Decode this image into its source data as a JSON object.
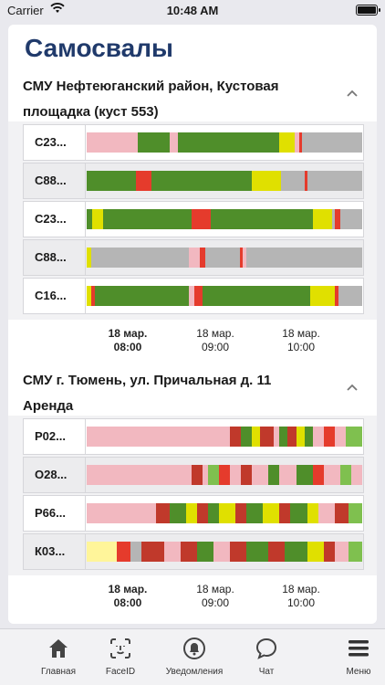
{
  "status": {
    "carrier": "Carrier",
    "time": "10:48 AM"
  },
  "page": {
    "title": "Самосвалы"
  },
  "groups": [
    {
      "title": "СМУ Нефтеюганский район, Кустовая площадка (куст 553)",
      "ticks": [
        {
          "date": "18 мар.",
          "time": "08:00",
          "bold": true
        },
        {
          "date": "18 мар.",
          "time": "09:00",
          "bold": false
        },
        {
          "date": "18 мар.",
          "time": "10:00",
          "bold": false
        }
      ],
      "rows": [
        {
          "label": "С23...",
          "segments": [
            [
              0,
              0.185,
              "#f2b8c0"
            ],
            [
              0.185,
              0.3,
              "#4f8e2a"
            ],
            [
              0.3,
              0.33,
              "#f2b8c0"
            ],
            [
              0.33,
              0.7,
              "#4f8e2a"
            ],
            [
              0.7,
              0.755,
              "#e0e000"
            ],
            [
              0.755,
              0.77,
              "#f2b8c0"
            ],
            [
              0.77,
              0.78,
              "#e53b2c"
            ],
            [
              0.78,
              1,
              "#b5b5b5"
            ]
          ]
        },
        {
          "label": "С88...",
          "segments": [
            [
              0,
              0.18,
              "#4f8e2a"
            ],
            [
              0.18,
              0.235,
              "#e53b2c"
            ],
            [
              0.235,
              0.6,
              "#4f8e2a"
            ],
            [
              0.6,
              0.705,
              "#e0e000"
            ],
            [
              0.705,
              0.79,
              "#b5b5b5"
            ],
            [
              0.79,
              0.8,
              "#e53b2c"
            ],
            [
              0.8,
              1,
              "#b5b5b5"
            ]
          ]
        },
        {
          "label": "С23...",
          "segments": [
            [
              0,
              0.02,
              "#4f8e2a"
            ],
            [
              0.02,
              0.06,
              "#e0e000"
            ],
            [
              0.06,
              0.38,
              "#4f8e2a"
            ],
            [
              0.38,
              0.45,
              "#e53b2c"
            ],
            [
              0.45,
              0.82,
              "#4f8e2a"
            ],
            [
              0.82,
              0.89,
              "#e0e000"
            ],
            [
              0.89,
              0.9,
              "#b5b5b5"
            ],
            [
              0.9,
              0.92,
              "#e53b2c"
            ],
            [
              0.92,
              1,
              "#b5b5b5"
            ]
          ]
        },
        {
          "label": "С88...",
          "segments": [
            [
              0,
              0.015,
              "#e0e000"
            ],
            [
              0.015,
              0.37,
              "#b5b5b5"
            ],
            [
              0.37,
              0.41,
              "#f2b8c0"
            ],
            [
              0.41,
              0.43,
              "#e53b2c"
            ],
            [
              0.43,
              0.555,
              "#b5b5b5"
            ],
            [
              0.555,
              0.565,
              "#e53b2c"
            ],
            [
              0.565,
              0.58,
              "#f2b8c0"
            ],
            [
              0.58,
              1,
              "#b5b5b5"
            ]
          ]
        },
        {
          "label": "С16...",
          "segments": [
            [
              0,
              0.015,
              "#e0e000"
            ],
            [
              0.015,
              0.03,
              "#e53b2c"
            ],
            [
              0.03,
              0.37,
              "#4f8e2a"
            ],
            [
              0.37,
              0.39,
              "#f2b8c0"
            ],
            [
              0.39,
              0.42,
              "#e53b2c"
            ],
            [
              0.42,
              0.81,
              "#4f8e2a"
            ],
            [
              0.81,
              0.9,
              "#e0e000"
            ],
            [
              0.9,
              0.915,
              "#e53b2c"
            ],
            [
              0.915,
              1,
              "#b5b5b5"
            ]
          ]
        }
      ]
    },
    {
      "title": "СМУ г. Тюмень, ул. Причальная д. 11 Аренда",
      "ticks": [
        {
          "date": "18 мар.",
          "time": "08:00",
          "bold": true
        },
        {
          "date": "18 мар.",
          "time": "09:00",
          "bold": false
        },
        {
          "date": "18 мар.",
          "time": "10:00",
          "bold": false
        }
      ],
      "rows": [
        {
          "label": "Р02...",
          "segments": [
            [
              0,
              0.52,
              "#f2b8c0"
            ],
            [
              0.52,
              0.56,
              "#c0392b"
            ],
            [
              0.56,
              0.6,
              "#4f8e2a"
            ],
            [
              0.6,
              0.63,
              "#e0e000"
            ],
            [
              0.63,
              0.68,
              "#c0392b"
            ],
            [
              0.68,
              0.7,
              "#f2b8c0"
            ],
            [
              0.7,
              0.73,
              "#4f8e2a"
            ],
            [
              0.73,
              0.76,
              "#c0392b"
            ],
            [
              0.76,
              0.79,
              "#e0e000"
            ],
            [
              0.79,
              0.82,
              "#4f8e2a"
            ],
            [
              0.82,
              0.86,
              "#f2b8c0"
            ],
            [
              0.86,
              0.9,
              "#e53b2c"
            ],
            [
              0.9,
              0.94,
              "#f2b8c0"
            ],
            [
              0.94,
              1,
              "#7fc04f"
            ]
          ]
        },
        {
          "label": "О28...",
          "segments": [
            [
              0,
              0.38,
              "#f2b8c0"
            ],
            [
              0.38,
              0.42,
              "#c0392b"
            ],
            [
              0.42,
              0.44,
              "#f2b8c0"
            ],
            [
              0.44,
              0.48,
              "#7fc04f"
            ],
            [
              0.48,
              0.52,
              "#e53b2c"
            ],
            [
              0.52,
              0.56,
              "#f2b8c0"
            ],
            [
              0.56,
              0.6,
              "#c0392b"
            ],
            [
              0.6,
              0.66,
              "#f2b8c0"
            ],
            [
              0.66,
              0.7,
              "#4f8e2a"
            ],
            [
              0.7,
              0.76,
              "#f2b8c0"
            ],
            [
              0.76,
              0.82,
              "#4f8e2a"
            ],
            [
              0.82,
              0.86,
              "#e53b2c"
            ],
            [
              0.86,
              0.92,
              "#f2b8c0"
            ],
            [
              0.92,
              0.96,
              "#7fc04f"
            ],
            [
              0.96,
              1,
              "#f2b8c0"
            ]
          ]
        },
        {
          "label": "Р66...",
          "segments": [
            [
              0,
              0.25,
              "#f2b8c0"
            ],
            [
              0.25,
              0.3,
              "#c0392b"
            ],
            [
              0.3,
              0.36,
              "#4f8e2a"
            ],
            [
              0.36,
              0.4,
              "#e0e000"
            ],
            [
              0.4,
              0.44,
              "#c0392b"
            ],
            [
              0.44,
              0.48,
              "#4f8e2a"
            ],
            [
              0.48,
              0.54,
              "#e0e000"
            ],
            [
              0.54,
              0.58,
              "#c0392b"
            ],
            [
              0.58,
              0.64,
              "#4f8e2a"
            ],
            [
              0.64,
              0.7,
              "#e0e000"
            ],
            [
              0.7,
              0.74,
              "#c0392b"
            ],
            [
              0.74,
              0.8,
              "#4f8e2a"
            ],
            [
              0.8,
              0.84,
              "#e0e000"
            ],
            [
              0.84,
              0.9,
              "#f2b8c0"
            ],
            [
              0.9,
              0.95,
              "#c0392b"
            ],
            [
              0.95,
              1,
              "#7fc04f"
            ]
          ]
        },
        {
          "label": "К03...",
          "segments": [
            [
              0,
              0.11,
              "#fff59a"
            ],
            [
              0.11,
              0.16,
              "#e53b2c"
            ],
            [
              0.16,
              0.2,
              "#b5b5b5"
            ],
            [
              0.2,
              0.28,
              "#c0392b"
            ],
            [
              0.28,
              0.34,
              "#f2b8c0"
            ],
            [
              0.34,
              0.4,
              "#c0392b"
            ],
            [
              0.4,
              0.46,
              "#4f8e2a"
            ],
            [
              0.46,
              0.52,
              "#f2b8c0"
            ],
            [
              0.52,
              0.58,
              "#c0392b"
            ],
            [
              0.58,
              0.66,
              "#4f8e2a"
            ],
            [
              0.66,
              0.72,
              "#c0392b"
            ],
            [
              0.72,
              0.8,
              "#4f8e2a"
            ],
            [
              0.8,
              0.86,
              "#e0e000"
            ],
            [
              0.86,
              0.9,
              "#c0392b"
            ],
            [
              0.9,
              0.95,
              "#f2b8c0"
            ],
            [
              0.95,
              1,
              "#7fc04f"
            ]
          ]
        }
      ]
    }
  ],
  "tabbar": {
    "items": [
      {
        "label": "Главная",
        "icon": "home-icon"
      },
      {
        "label": "FaceID",
        "icon": "faceid-icon"
      },
      {
        "label": "Уведомления",
        "icon": "bell-icon"
      },
      {
        "label": "Чат",
        "icon": "chat-icon"
      },
      {
        "label": "Меню",
        "icon": "menu-icon"
      }
    ]
  }
}
